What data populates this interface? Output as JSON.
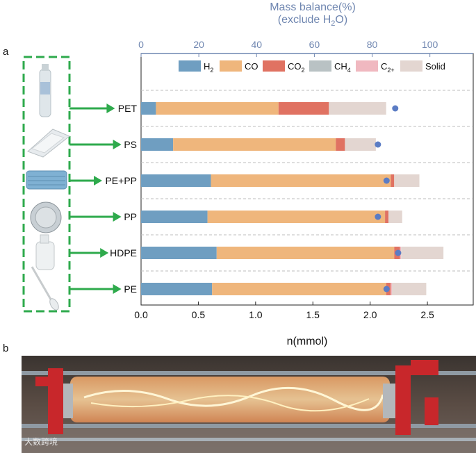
{
  "panel_a_label": "a",
  "panel_b_label": "b",
  "watermark": "大数跨境",
  "chart_data": {
    "type": "bar",
    "orientation": "horizontal",
    "stacked": true,
    "title": "",
    "top_axis": {
      "title_line1": "Mass balance(%)",
      "title_line2_prefix": "(exclude H",
      "title_line2_sub": "2",
      "title_line2_suffix": "O)",
      "range": [
        0,
        115
      ],
      "ticks": [
        "0",
        "20",
        "40",
        "60",
        "80",
        "100"
      ],
      "tick_values": [
        0,
        20,
        40,
        60,
        80,
        100
      ],
      "color": "#6f86b0"
    },
    "xlabel": "n(mmol)",
    "xlim": [
      0,
      2.9
    ],
    "x_ticks": [
      "0.0",
      "0.5",
      "1.0",
      "1.5",
      "2.0",
      "2.5"
    ],
    "x_tick_values": [
      0,
      0.5,
      1.0,
      1.5,
      2.0,
      2.5
    ],
    "categories": [
      "PET",
      "PS",
      "PE+PP",
      "PP",
      "HDPE",
      "PE"
    ],
    "series": [
      {
        "name": "H",
        "sub": "2",
        "color": "#6f9ec1",
        "values": [
          0.13,
          0.28,
          0.61,
          0.58,
          0.66,
          0.62
        ]
      },
      {
        "name": "CO",
        "sub": "",
        "color": "#efb67c",
        "values": [
          1.07,
          1.42,
          1.57,
          1.55,
          1.55,
          1.52
        ]
      },
      {
        "name": "CO",
        "sub": "2",
        "color": "#e07262",
        "values": [
          0.44,
          0.08,
          0.03,
          0.03,
          0.05,
          0.04
        ]
      },
      {
        "name": "CH",
        "sub": "4",
        "color": "#b9c2c4",
        "values": [
          0.0,
          0.0,
          0.0,
          0.0,
          0.0,
          0.0
        ]
      },
      {
        "name": "C",
        "sub": "2+",
        "color": "#f0b8c0",
        "values": [
          0.0,
          0.0,
          0.0,
          0.0,
          0.01,
          0.01
        ]
      },
      {
        "name": "Solid",
        "sub": "",
        "color": "#e3d6d1",
        "values": [
          0.5,
          0.27,
          0.22,
          0.12,
          0.37,
          0.3
        ]
      }
    ],
    "mass_balance_points": {
      "color": "#5b7cc4",
      "values": [
        88,
        82,
        85,
        82,
        89,
        85
      ]
    },
    "grid": "dashed horizontal separators",
    "legend_position": "top"
  }
}
